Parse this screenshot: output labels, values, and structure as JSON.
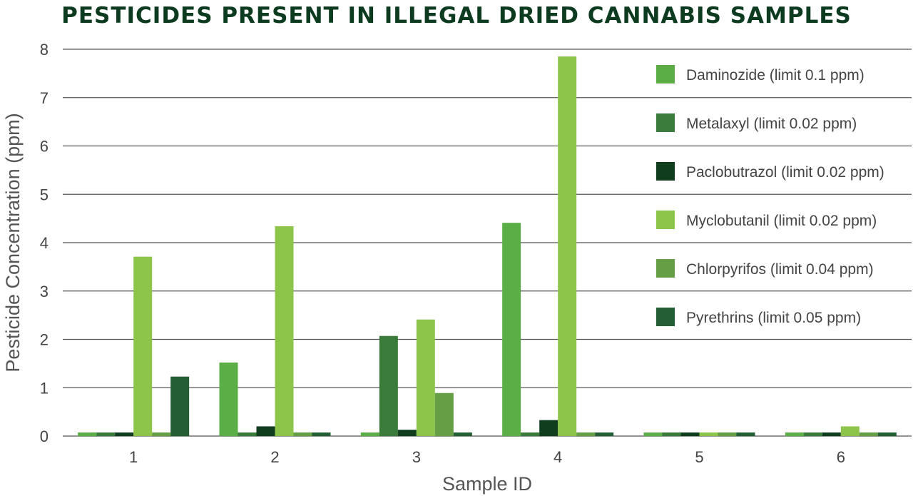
{
  "chart_data": {
    "type": "bar",
    "title": "PESTICIDES PRESENT IN ILLEGAL DRIED CANNABIS SAMPLES",
    "xlabel": "Sample ID",
    "ylabel": "Pesticide Concentration (ppm)",
    "ylim": [
      0,
      8
    ],
    "yticks": [
      0,
      1,
      2,
      3,
      4,
      5,
      6,
      7,
      8
    ],
    "grid": true,
    "legend_position": "top-right",
    "categories": [
      "1",
      "2",
      "3",
      "4",
      "5",
      "6"
    ],
    "series": [
      {
        "name": "Daminozide (limit 0.1 ppm)",
        "color": "#5aae45",
        "values": [
          0,
          1.52,
          0,
          4.41,
          0,
          0
        ]
      },
      {
        "name": "Metalaxyl (limit 0.02 ppm)",
        "color": "#3a7a3a",
        "values": [
          0,
          0,
          2.07,
          0,
          0,
          0
        ]
      },
      {
        "name": "Paclobutrazol (limit 0.02 ppm)",
        "color": "#0f3d1e",
        "values": [
          0,
          0.2,
          0.13,
          0.33,
          0,
          0
        ]
      },
      {
        "name": "Myclobutanil (limit 0.02 ppm)",
        "color": "#8dc44a",
        "values": [
          3.71,
          4.34,
          2.41,
          7.85,
          0,
          0.2
        ]
      },
      {
        "name": "Chlorpyrifos (limit 0.04 ppm)",
        "color": "#659e44",
        "values": [
          0,
          0,
          0.89,
          0,
          0,
          0
        ]
      },
      {
        "name": "Pyrethrins (limit 0.05 ppm)",
        "color": "#245e34",
        "values": [
          1.23,
          0,
          0,
          0,
          0,
          0
        ]
      }
    ]
  }
}
